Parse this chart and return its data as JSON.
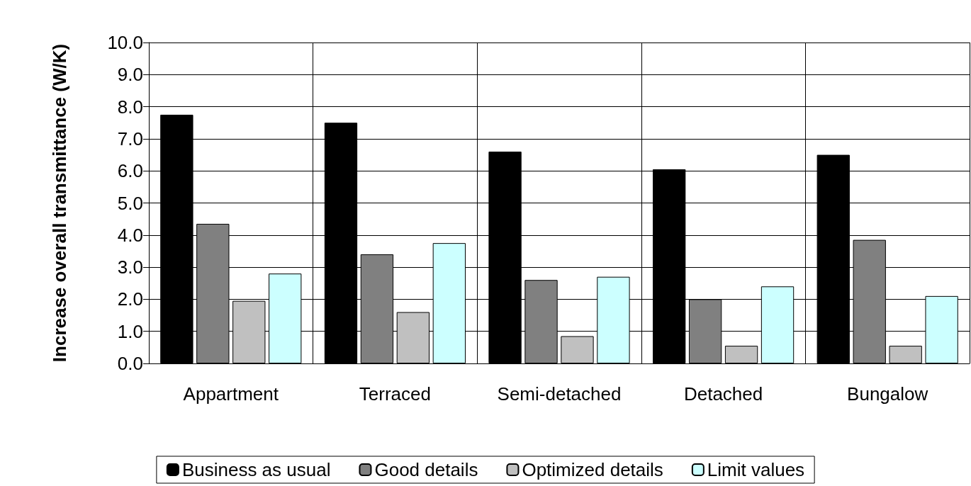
{
  "chart_data": {
    "type": "bar",
    "ylabel": "Increase overall transmittance (W/K)",
    "categories": [
      "Appartment",
      "Terraced",
      "Semi-detached",
      "Detached",
      "Bungalow"
    ],
    "series": [
      {
        "name": "Business as usual",
        "color": "#000000",
        "values": [
          7.75,
          7.5,
          6.6,
          6.05,
          6.5
        ]
      },
      {
        "name": "Good details",
        "color": "#808080",
        "values": [
          4.35,
          3.4,
          2.6,
          2.0,
          3.85
        ]
      },
      {
        "name": "Optimized details",
        "color": "#c0c0c0",
        "values": [
          1.95,
          1.6,
          0.85,
          0.55,
          0.55
        ]
      },
      {
        "name": "Limit values",
        "color": "#ccffff",
        "values": [
          2.8,
          3.75,
          2.7,
          2.4,
          2.1
        ]
      }
    ],
    "ylim": [
      0,
      10
    ],
    "yticks": [
      {
        "value": 0,
        "label": "0.0"
      },
      {
        "value": 1,
        "label": "1.0"
      },
      {
        "value": 2,
        "label": "2.0"
      },
      {
        "value": 3,
        "label": "3.0"
      },
      {
        "value": 4,
        "label": "4.0"
      },
      {
        "value": 5,
        "label": "5.0"
      },
      {
        "value": 6,
        "label": "6.0"
      },
      {
        "value": 7,
        "label": "7.0"
      },
      {
        "value": 8,
        "label": "8.0"
      },
      {
        "value": 9,
        "label": "9.0"
      },
      {
        "value": 10,
        "label": "10.0"
      }
    ],
    "grid": true,
    "legend": "bottom"
  }
}
